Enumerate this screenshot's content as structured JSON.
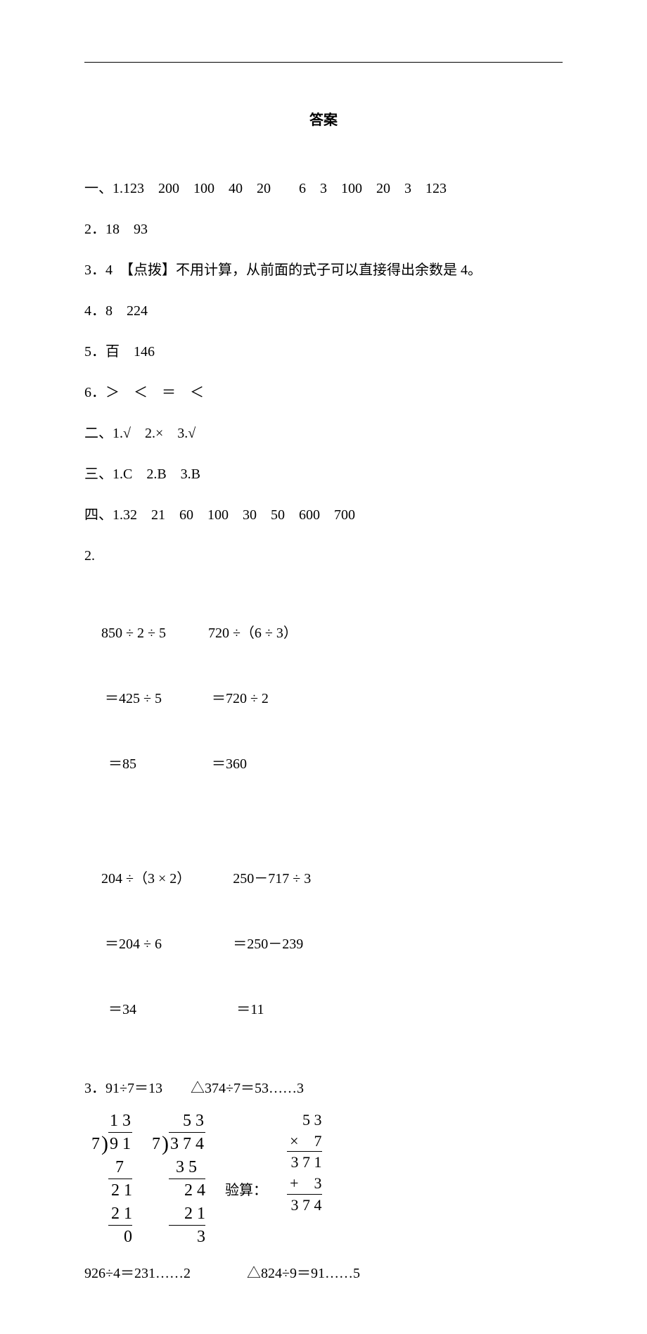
{
  "title": "答案",
  "lines": {
    "l1": "一、1.123　200　100　40　20　　6　3　100　20　3　123",
    "l2": "2．18　93",
    "l3": "3．4　【点拨】不用计算，从前面的式子可以直接得出余数是 4。",
    "l4": "4．8　224",
    "l5": "5．百　146",
    "l6": "6．＞　＜　＝　＜",
    "l7": "二、1.√　2.×　3.√",
    "l8": "三、1.C　2.B　3.B",
    "l9": "四、1.32　21　60　100　30　50　600　700",
    "l10": "2."
  },
  "calc": {
    "c1a": "850 ÷ 2 ÷ 5",
    "c1b": " ＝425 ÷ 5",
    "c1c": "  ＝85",
    "c2a": "720 ÷（6 ÷ 3）",
    "c2b": " ＝720 ÷ 2",
    "c2c": " ＝360",
    "c3a": "204 ÷（3 × 2）",
    "c3b": " ＝204 ÷ 6",
    "c3c": "  ＝34",
    "c4a": "250－717 ÷ 3",
    "c4b": "＝250－239",
    "c4c": " ＝11"
  },
  "sec3": {
    "header": "3．91÷7＝13　　△374÷7＝53……3"
  },
  "ld1": {
    "q": "1 3",
    "dvs": "7",
    "dvd": "9 1",
    "r1": "7  ",
    "r2": "2 1",
    "r3": "2 1",
    "r4": "0"
  },
  "ld2": {
    "q": "  5 3",
    "dvs": "7",
    "dvd": "3 7 4",
    "r1": "3 5  ",
    "r2": "2 4",
    "r3": "2 1",
    "r4": "3"
  },
  "verify": {
    "label": "验算：",
    "r1": "   5 3",
    "r2": "×    7",
    "r3": " 3 7 1",
    "r4": "+    3",
    "r5": " 3 7 4"
  },
  "last": "926÷4＝231……2　　　　△824÷9＝91……5"
}
